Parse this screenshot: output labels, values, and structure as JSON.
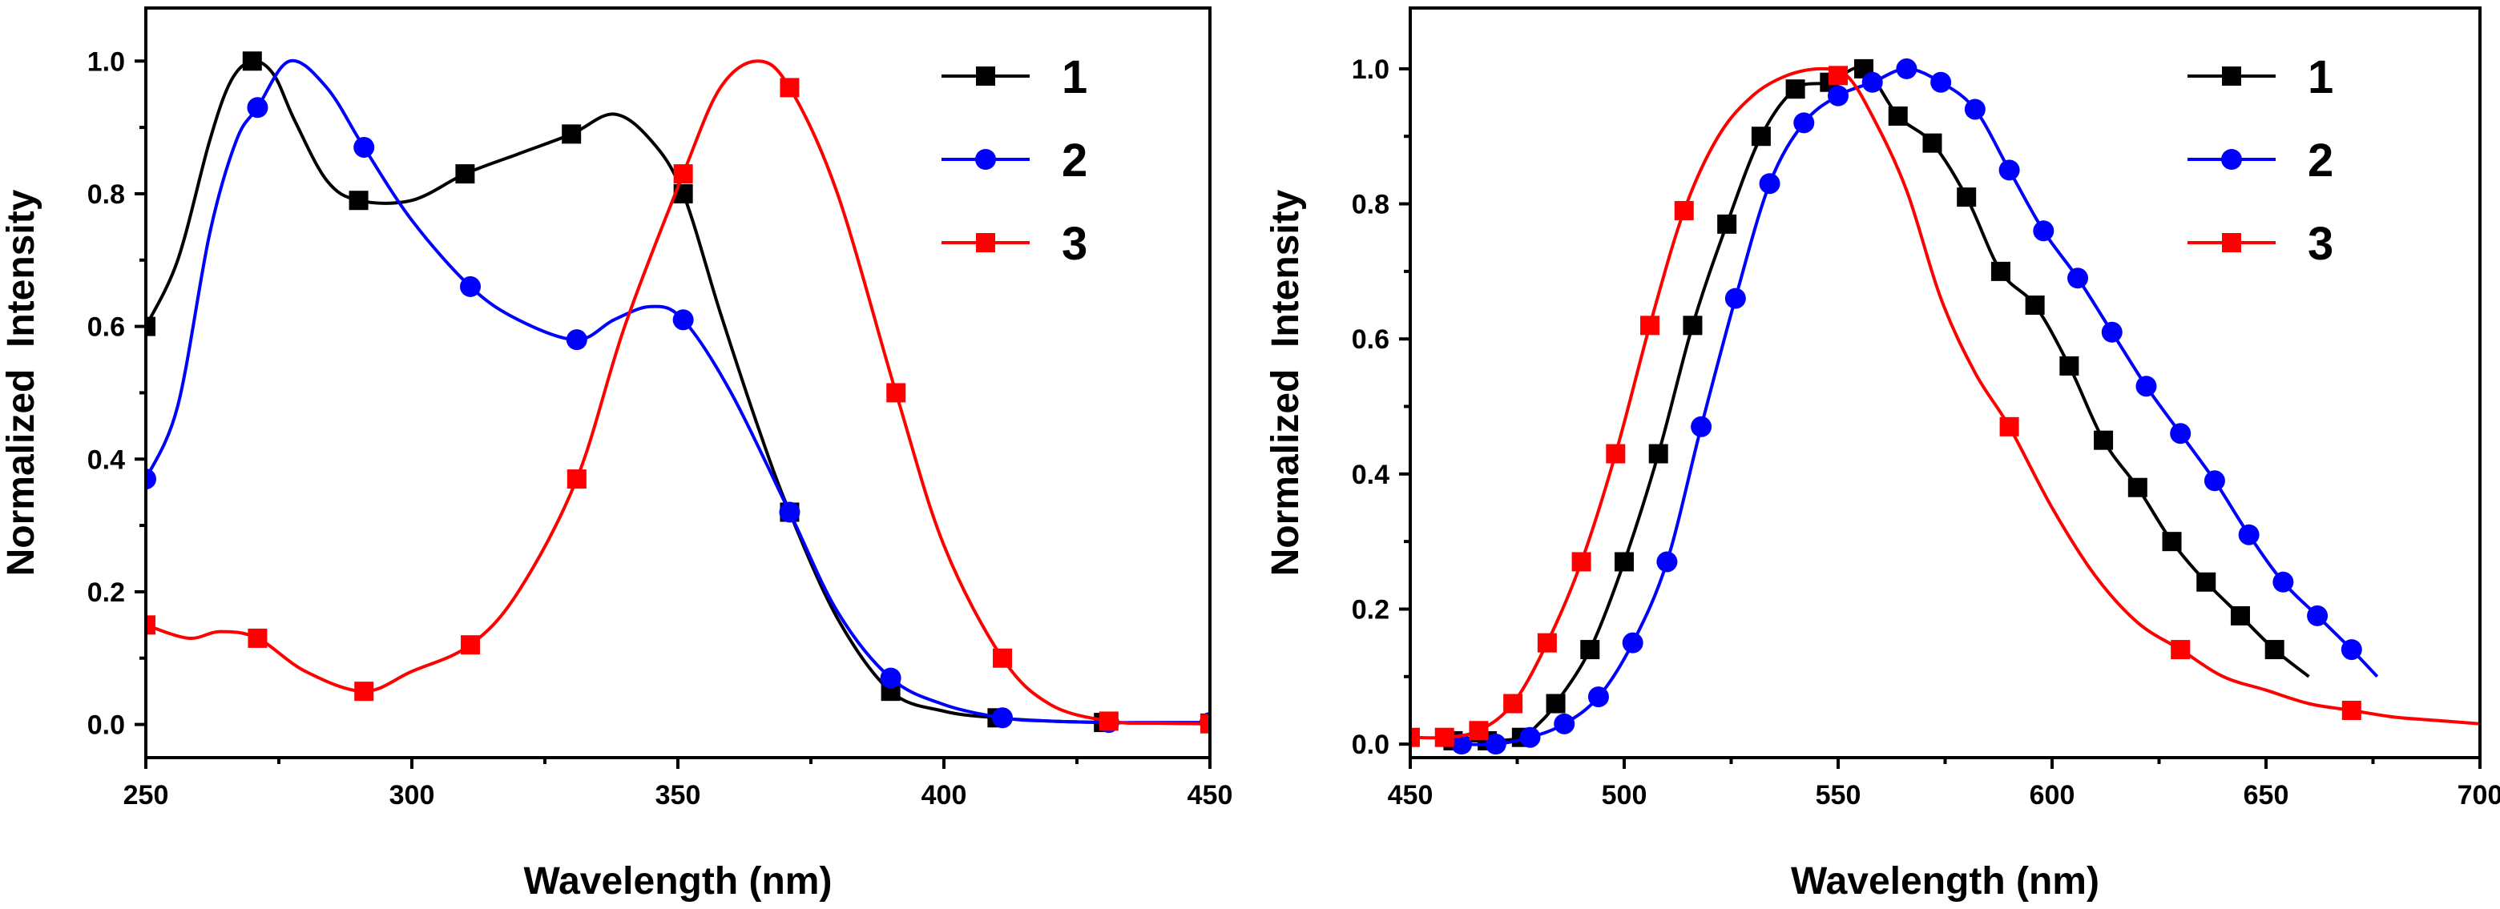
{
  "colors": {
    "1": "#000000",
    "2": "#0000ff",
    "3": "#ff0000"
  },
  "chart_data": [
    {
      "type": "line",
      "title": "",
      "xlabel": "Wavelength (nm)",
      "ylabel": "Normalized  Intensity",
      "xlim": [
        250,
        450
      ],
      "ylim": [
        -0.05,
        1.08
      ],
      "xticks": [
        250,
        300,
        350,
        400,
        450
      ],
      "yticks": [
        0.0,
        0.2,
        0.4,
        0.6,
        0.8,
        1.0
      ],
      "xtick_labels": [
        "250",
        "300",
        "350",
        "400",
        "450"
      ],
      "ytick_labels": [
        "0.0",
        "0.2",
        "0.4",
        "0.6",
        "0.8",
        "1.0"
      ],
      "legend_position": "top-right",
      "series": [
        {
          "name": "1",
          "marker": "square",
          "color": "#000000",
          "x": [
            250,
            256,
            262,
            266,
            270,
            274,
            278,
            284,
            290,
            300,
            310,
            320,
            330,
            338,
            345,
            351,
            358,
            365,
            371,
            380,
            390,
            400,
            410,
            420,
            430,
            440,
            450
          ],
          "y": [
            0.6,
            0.7,
            0.88,
            0.97,
            1.0,
            0.98,
            0.91,
            0.82,
            0.79,
            0.79,
            0.83,
            0.86,
            0.89,
            0.92,
            0.88,
            0.8,
            0.62,
            0.45,
            0.32,
            0.16,
            0.05,
            0.02,
            0.01,
            0.005,
            0.003,
            0.002,
            0.002
          ],
          "marker_x": [
            250,
            270,
            290,
            310,
            330,
            351,
            371,
            390,
            410,
            430,
            450
          ],
          "marker_y": [
            0.6,
            1.0,
            0.79,
            0.83,
            0.89,
            0.8,
            0.32,
            0.05,
            0.01,
            0.003,
            0.002
          ]
        },
        {
          "name": "2",
          "marker": "circle",
          "color": "#0000ff",
          "x": [
            250,
            256,
            262,
            267,
            271,
            277,
            284,
            291,
            300,
            311,
            320,
            331,
            338,
            345,
            351,
            360,
            371,
            380,
            390,
            400,
            411,
            420,
            431,
            440,
            450
          ],
          "y": [
            0.37,
            0.48,
            0.74,
            0.88,
            0.93,
            1.0,
            0.96,
            0.87,
            0.76,
            0.66,
            0.61,
            0.58,
            0.61,
            0.63,
            0.61,
            0.5,
            0.32,
            0.17,
            0.07,
            0.03,
            0.01,
            0.005,
            0.003,
            0.003,
            0.003
          ],
          "marker_x": [
            250,
            271,
            291,
            311,
            331,
            351,
            371,
            390,
            411,
            431,
            450
          ],
          "marker_y": [
            0.37,
            0.93,
            0.87,
            0.66,
            0.58,
            0.61,
            0.32,
            0.07,
            0.01,
            0.003,
            0.003
          ]
        },
        {
          "name": "3",
          "marker": "square",
          "color": "#ff0000",
          "x": [
            250,
            258,
            264,
            271,
            280,
            291,
            300,
            311,
            320,
            331,
            340,
            351,
            358,
            365,
            371,
            380,
            391,
            400,
            411,
            420,
            431,
            440,
            450
          ],
          "y": [
            0.15,
            0.13,
            0.14,
            0.13,
            0.08,
            0.05,
            0.08,
            0.12,
            0.2,
            0.37,
            0.6,
            0.83,
            0.96,
            1.0,
            0.96,
            0.8,
            0.5,
            0.27,
            0.1,
            0.03,
            0.005,
            0.002,
            0.001
          ],
          "marker_x": [
            250,
            271,
            291,
            311,
            331,
            351,
            371,
            391,
            411,
            431,
            450
          ],
          "marker_y": [
            0.15,
            0.13,
            0.05,
            0.12,
            0.37,
            0.83,
            0.96,
            0.5,
            0.1,
            0.005,
            0.001
          ]
        }
      ]
    },
    {
      "type": "line",
      "title": "",
      "xlabel": "Wavelength (nm)",
      "ylabel": "Normalized  Intensity",
      "xlim": [
        450,
        700
      ],
      "ylim": [
        -0.02,
        1.09
      ],
      "xticks": [
        450,
        500,
        550,
        600,
        650,
        700
      ],
      "yticks": [
        0.0,
        0.2,
        0.4,
        0.6,
        0.8,
        1.0
      ],
      "xtick_labels": [
        "450",
        "500",
        "550",
        "600",
        "650",
        "700"
      ],
      "ytick_labels": [
        "0.0",
        "0.2",
        "0.4",
        "0.6",
        "0.8",
        "1.0"
      ],
      "legend_position": "top-right",
      "series": [
        {
          "name": "1",
          "marker": "square",
          "color": "#000000",
          "x": [
            460,
            465,
            470,
            476,
            480,
            484,
            492,
            500,
            508,
            516,
            524,
            532,
            540,
            548,
            556,
            564,
            572,
            580,
            588,
            596,
            604,
            612,
            620,
            628,
            636,
            644,
            652,
            660
          ],
          "y": [
            0.005,
            0.005,
            0.005,
            0.01,
            0.03,
            0.06,
            0.14,
            0.27,
            0.43,
            0.62,
            0.77,
            0.9,
            0.97,
            0.98,
            1.0,
            0.93,
            0.89,
            0.81,
            0.7,
            0.65,
            0.56,
            0.45,
            0.38,
            0.3,
            0.24,
            0.19,
            0.14,
            0.1
          ],
          "marker_x": [
            460,
            468,
            476,
            484,
            492,
            500,
            508,
            516,
            524,
            532,
            540,
            548,
            556,
            564,
            572,
            580,
            588,
            596,
            604,
            612,
            620,
            628,
            636,
            644,
            652
          ],
          "marker_y": [
            0.005,
            0.005,
            0.01,
            0.06,
            0.14,
            0.27,
            0.43,
            0.62,
            0.77,
            0.9,
            0.97,
            0.98,
            1.0,
            0.93,
            0.89,
            0.81,
            0.7,
            0.65,
            0.56,
            0.45,
            0.38,
            0.3,
            0.24,
            0.19,
            0.14
          ]
        },
        {
          "name": "2",
          "marker": "circle",
          "color": "#0000ff",
          "x": [
            462,
            470,
            478,
            486,
            494,
            502,
            510,
            518,
            526,
            534,
            542,
            550,
            558,
            566,
            574,
            582,
            590,
            598,
            606,
            614,
            622,
            630,
            638,
            646,
            654,
            662,
            670,
            676
          ],
          "y": [
            0.0,
            0.0,
            0.01,
            0.03,
            0.07,
            0.15,
            0.27,
            0.47,
            0.66,
            0.83,
            0.92,
            0.96,
            0.98,
            1.0,
            0.98,
            0.94,
            0.85,
            0.76,
            0.69,
            0.61,
            0.53,
            0.46,
            0.39,
            0.31,
            0.24,
            0.19,
            0.14,
            0.1
          ],
          "marker_x": [
            462,
            470,
            478,
            486,
            494,
            502,
            510,
            518,
            526,
            534,
            542,
            550,
            558,
            566,
            574,
            582,
            590,
            598,
            606,
            614,
            622,
            630,
            638,
            646,
            654,
            662,
            670
          ],
          "marker_y": [
            0.0,
            0.0,
            0.01,
            0.03,
            0.07,
            0.15,
            0.27,
            0.47,
            0.66,
            0.83,
            0.92,
            0.96,
            0.98,
            1.0,
            0.98,
            0.94,
            0.85,
            0.76,
            0.69,
            0.61,
            0.53,
            0.46,
            0.39,
            0.31,
            0.24,
            0.19,
            0.14
          ]
        },
        {
          "name": "3",
          "marker": "square",
          "color": "#ff0000",
          "x": [
            450,
            458,
            466,
            474,
            482,
            490,
            498,
            506,
            514,
            522,
            530,
            538,
            546,
            552,
            558,
            566,
            574,
            582,
            590,
            600,
            610,
            620,
            630,
            640,
            650,
            660,
            670,
            680,
            690,
            700
          ],
          "y": [
            0.01,
            0.01,
            0.02,
            0.06,
            0.15,
            0.27,
            0.43,
            0.62,
            0.79,
            0.9,
            0.96,
            0.99,
            1.0,
            0.99,
            0.93,
            0.82,
            0.66,
            0.55,
            0.47,
            0.35,
            0.25,
            0.18,
            0.14,
            0.1,
            0.08,
            0.06,
            0.05,
            0.04,
            0.035,
            0.03
          ],
          "marker_x": [
            450,
            458,
            466,
            474,
            482,
            490,
            498,
            506,
            514,
            550,
            590,
            630,
            670
          ],
          "marker_y": [
            0.01,
            0.01,
            0.02,
            0.06,
            0.15,
            0.27,
            0.43,
            0.62,
            0.79,
            0.99,
            0.47,
            0.14,
            0.05
          ]
        }
      ]
    }
  ]
}
